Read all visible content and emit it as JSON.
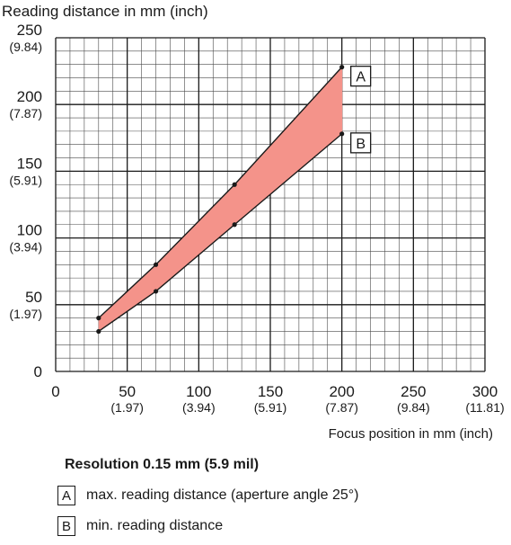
{
  "chart_data": {
    "type": "area",
    "title": "Reading distance in mm (inch)",
    "xlabel": "Focus position in mm (inch)",
    "xlim": [
      0,
      300
    ],
    "ylim": [
      0,
      250
    ],
    "x_ticks": [
      {
        "value": 0,
        "label": "0",
        "sub": ""
      },
      {
        "value": 50,
        "label": "50",
        "sub": "(1.97)"
      },
      {
        "value": 100,
        "label": "100",
        "sub": "(3.94)"
      },
      {
        "value": 150,
        "label": "150",
        "sub": "(5.91)"
      },
      {
        "value": 200,
        "label": "200",
        "sub": "(7.87)"
      },
      {
        "value": 250,
        "label": "250",
        "sub": "(9.84)"
      },
      {
        "value": 300,
        "label": "300",
        "sub": "(11.81)"
      }
    ],
    "y_ticks": [
      {
        "value": 0,
        "label": "0",
        "sub": ""
      },
      {
        "value": 50,
        "label": "50",
        "sub": "(1.97)"
      },
      {
        "value": 100,
        "label": "100",
        "sub": "(3.94)"
      },
      {
        "value": 150,
        "label": "150",
        "sub": "(5.91)"
      },
      {
        "value": 200,
        "label": "200",
        "sub": "(7.87)"
      },
      {
        "value": 250,
        "label": "250",
        "sub": "(9.84)"
      }
    ],
    "grid": true,
    "series": [
      {
        "name": "A",
        "x": [
          30,
          70,
          125,
          200
        ],
        "y": [
          40,
          80,
          140,
          228
        ]
      },
      {
        "name": "B",
        "x": [
          30,
          70,
          125,
          200
        ],
        "y": [
          30,
          60,
          110,
          178
        ]
      }
    ],
    "fill_color": "#f4938a",
    "line_color": "#1a1a1a",
    "grid_color": "#4a4a4a"
  },
  "legend": {
    "title": "Resolution 0.15 mm (5.9 mil)",
    "items": [
      {
        "key": "A",
        "text": "max. reading distance (aperture angle 25°)"
      },
      {
        "key": "B",
        "text": "min. reading distance"
      }
    ]
  }
}
